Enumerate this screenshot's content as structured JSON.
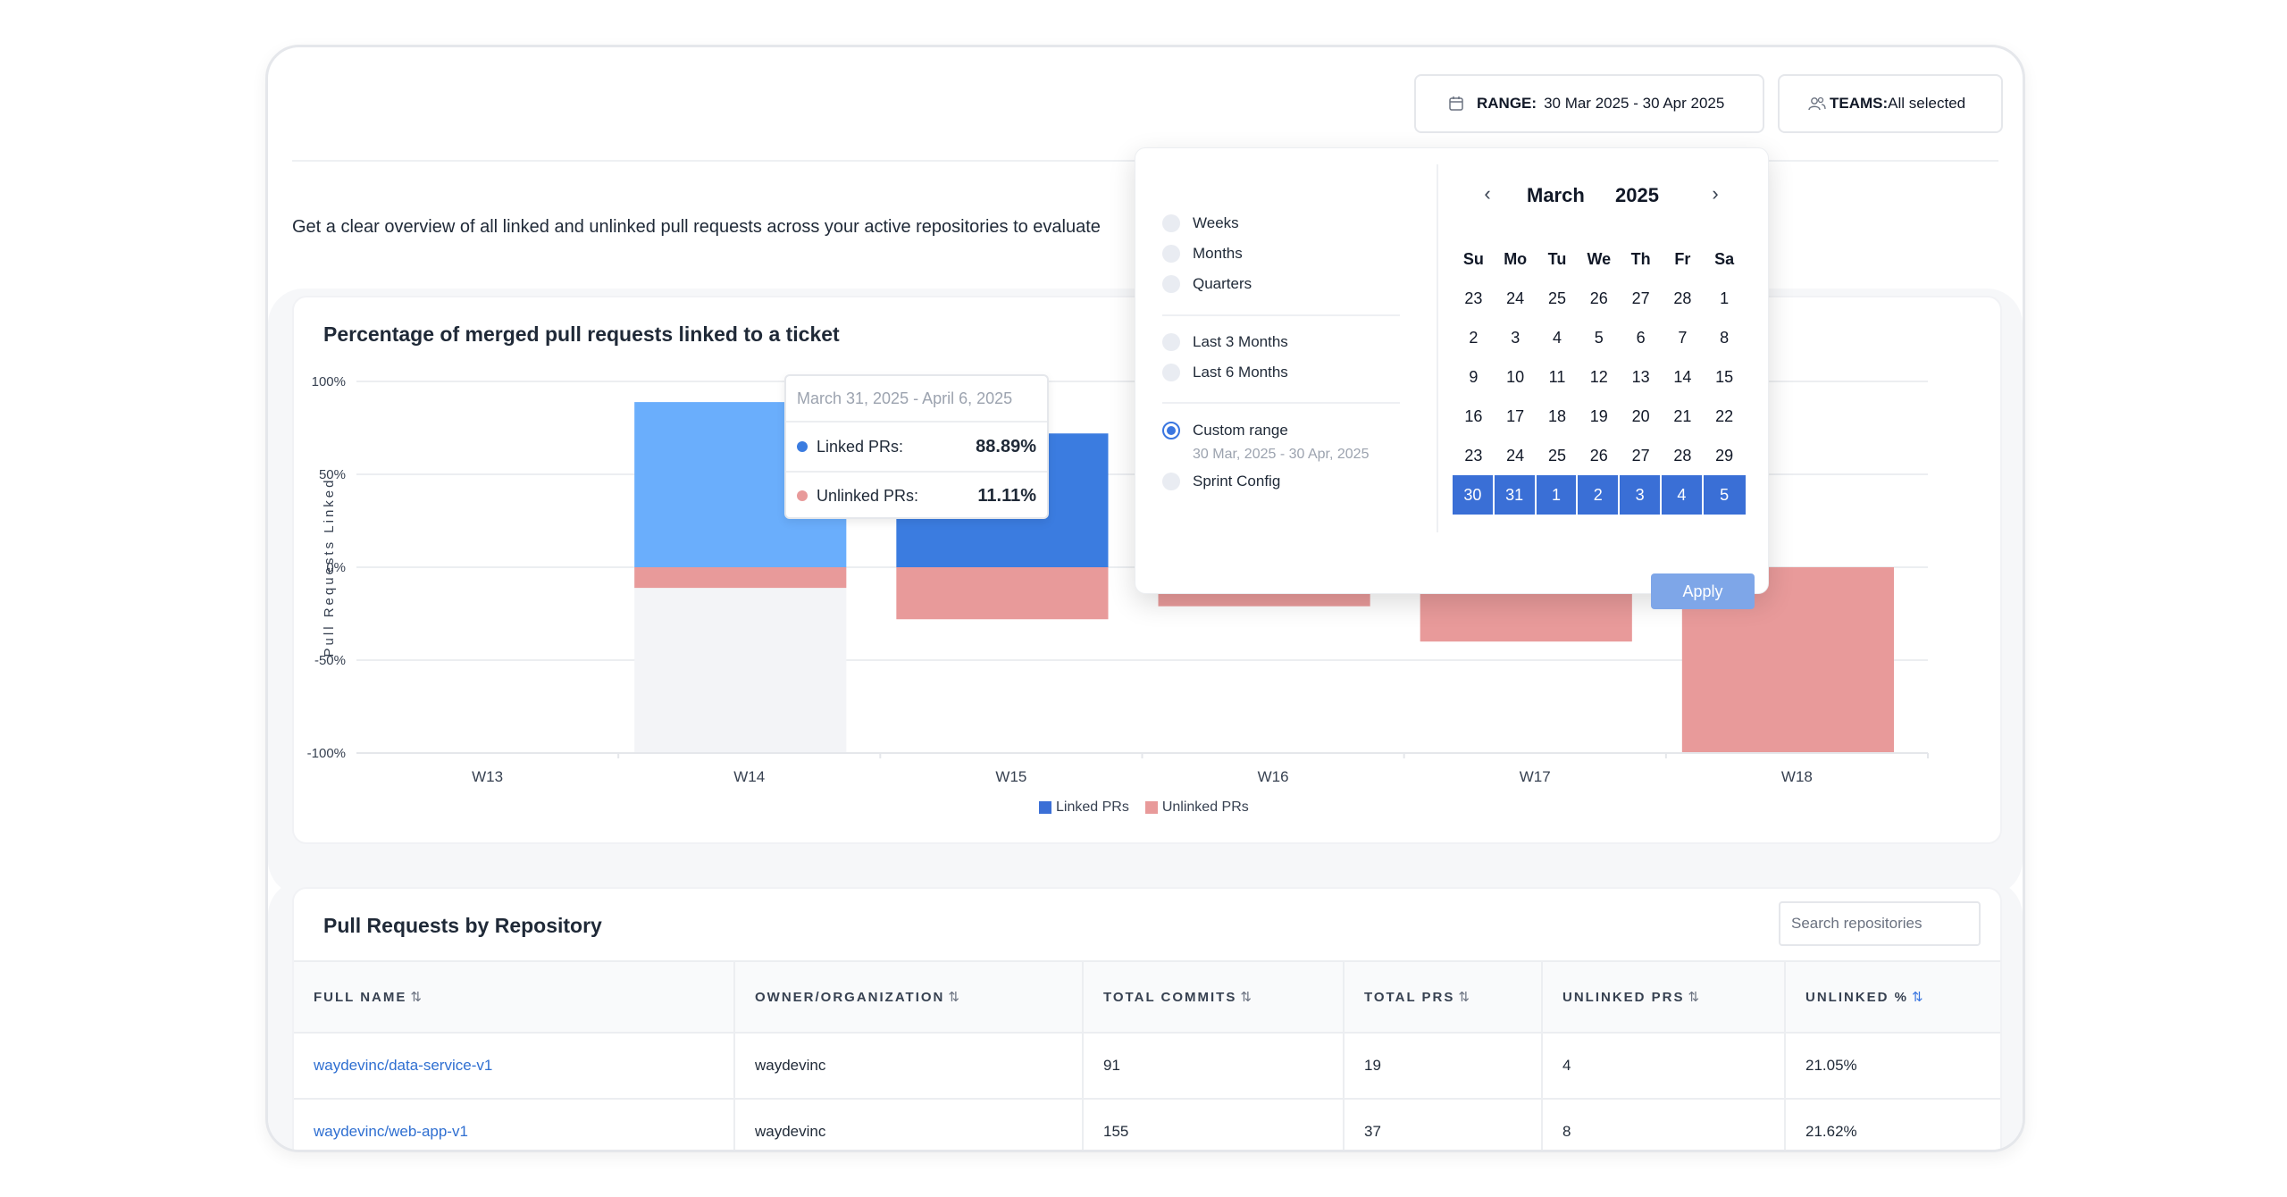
{
  "header": {
    "range_label": "RANGE:",
    "range_value": "30 Mar 2025 - 30 Apr 2025",
    "teams_label": "TEAMS:",
    "teams_value": "All selected"
  },
  "overview_text": "Get a clear overview of all linked and unlinked pull requests across your active repositories to evaluate",
  "chart_card": {
    "title": "Percentage of merged pull requests linked to a ticket"
  },
  "chart_data": {
    "type": "bar",
    "title": "Percentage of merged pull requests linked to a ticket",
    "ylabel": "Pull Requests Linked",
    "xlabel": "",
    "categories": [
      "W13",
      "W14",
      "W15",
      "W16",
      "W17",
      "W18"
    ],
    "yticks": [
      "100%",
      "50%",
      "0%",
      "-50%",
      "-100%"
    ],
    "ylim": [
      -100,
      100
    ],
    "grid": true,
    "legend_position": "bottom",
    "series": [
      {
        "name": "Linked PRs",
        "color": "#3b7ce0",
        "values": [
          null,
          88.89,
          72,
          0,
          0,
          0
        ]
      },
      {
        "name": "Unlinked PRs",
        "color": "#e89a9a",
        "values": [
          null,
          -11.11,
          -28,
          -21,
          -40,
          -100
        ]
      }
    ],
    "highlight_index": 1
  },
  "tooltip": {
    "title": "March 31, 2025 - April 6, 2025",
    "linked_label": "Linked PRs:",
    "linked_value": "88.89%",
    "unlinked_label": "Unlinked PRs:",
    "unlinked_value": "11.11%"
  },
  "legend": {
    "linked": "Linked PRs",
    "unlinked": "Unlinked PRs"
  },
  "date_picker": {
    "options": {
      "weeks": "Weeks",
      "months": "Months",
      "quarters": "Quarters",
      "last3": "Last 3 Months",
      "last6": "Last 6 Months",
      "custom": "Custom range",
      "custom_sub": "30 Mar, 2025 - 30 Apr, 2025",
      "sprint": "Sprint Config"
    },
    "selected_option": "custom",
    "month": "March",
    "year": "2025",
    "dow": [
      "Su",
      "Mo",
      "Tu",
      "We",
      "Th",
      "Fr",
      "Sa"
    ],
    "weeks": [
      [
        "23",
        "24",
        "25",
        "26",
        "27",
        "28",
        "1"
      ],
      [
        "2",
        "3",
        "4",
        "5",
        "6",
        "7",
        "8"
      ],
      [
        "9",
        "10",
        "11",
        "12",
        "13",
        "14",
        "15"
      ],
      [
        "16",
        "17",
        "18",
        "19",
        "20",
        "21",
        "22"
      ],
      [
        "23",
        "24",
        "25",
        "26",
        "27",
        "28",
        "29"
      ],
      [
        "30",
        "31",
        "1",
        "2",
        "3",
        "4",
        "5"
      ]
    ],
    "selected_week_index": 5,
    "apply_label": "Apply"
  },
  "repo_table": {
    "title": "Pull Requests by Repository",
    "search_placeholder": "Search repositories",
    "columns": [
      "FULL NAME",
      "OWNER/ORGANIZATION",
      "TOTAL COMMITS",
      "TOTAL PRS",
      "UNLINKED PRS",
      "UNLINKED %"
    ],
    "rows": [
      [
        "waydevinc/data-service-v1",
        "waydevinc",
        "91",
        "19",
        "4",
        "21.05%"
      ],
      [
        "waydevinc/web-app-v1",
        "waydevinc",
        "155",
        "37",
        "8",
        "21.62%"
      ]
    ]
  }
}
